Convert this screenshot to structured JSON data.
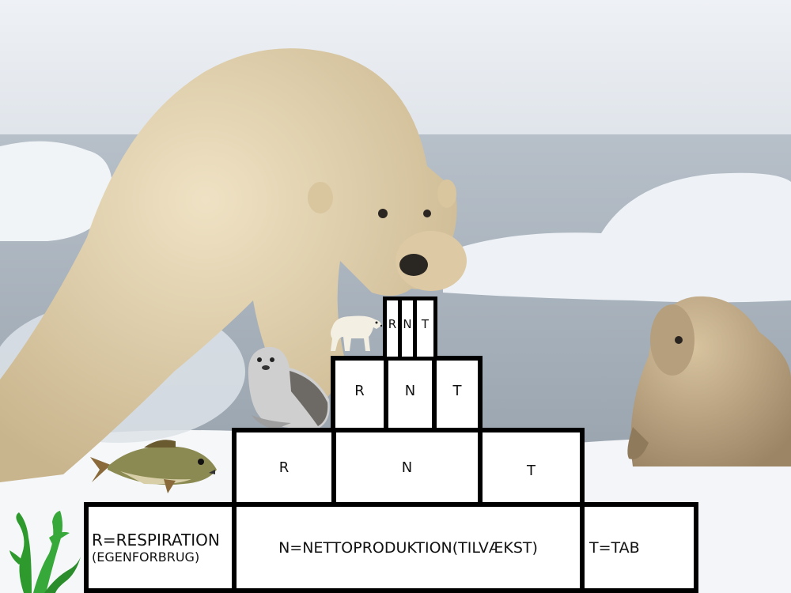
{
  "pyramid": {
    "level1": {
      "respiration_line1": "R=RESPIRATION",
      "respiration_line2": "(EGENFORBRUG)",
      "netto": "N=NETTOPRODUKTION(TILVÆKST)",
      "tab": "T=TAB"
    },
    "level2": {
      "r": "R",
      "n": "N",
      "t": "T"
    },
    "level3": {
      "r": "R",
      "n": "N",
      "t": "T"
    },
    "level4": {
      "r": "R",
      "n": "N",
      "t": "T"
    }
  },
  "organisms": {
    "producer": "seaweed-icon",
    "level2": "fish-icon",
    "level3": "seal-icon",
    "level4": "polar-bear-icon"
  },
  "colors": {
    "sky": "#e9eef3",
    "ice": "#f4f6f8",
    "water": "#a9b3bd",
    "bear": "#e2d3b0",
    "seal": "#c9b491",
    "seaweed": "#2e9a2e",
    "border": "#000000"
  }
}
